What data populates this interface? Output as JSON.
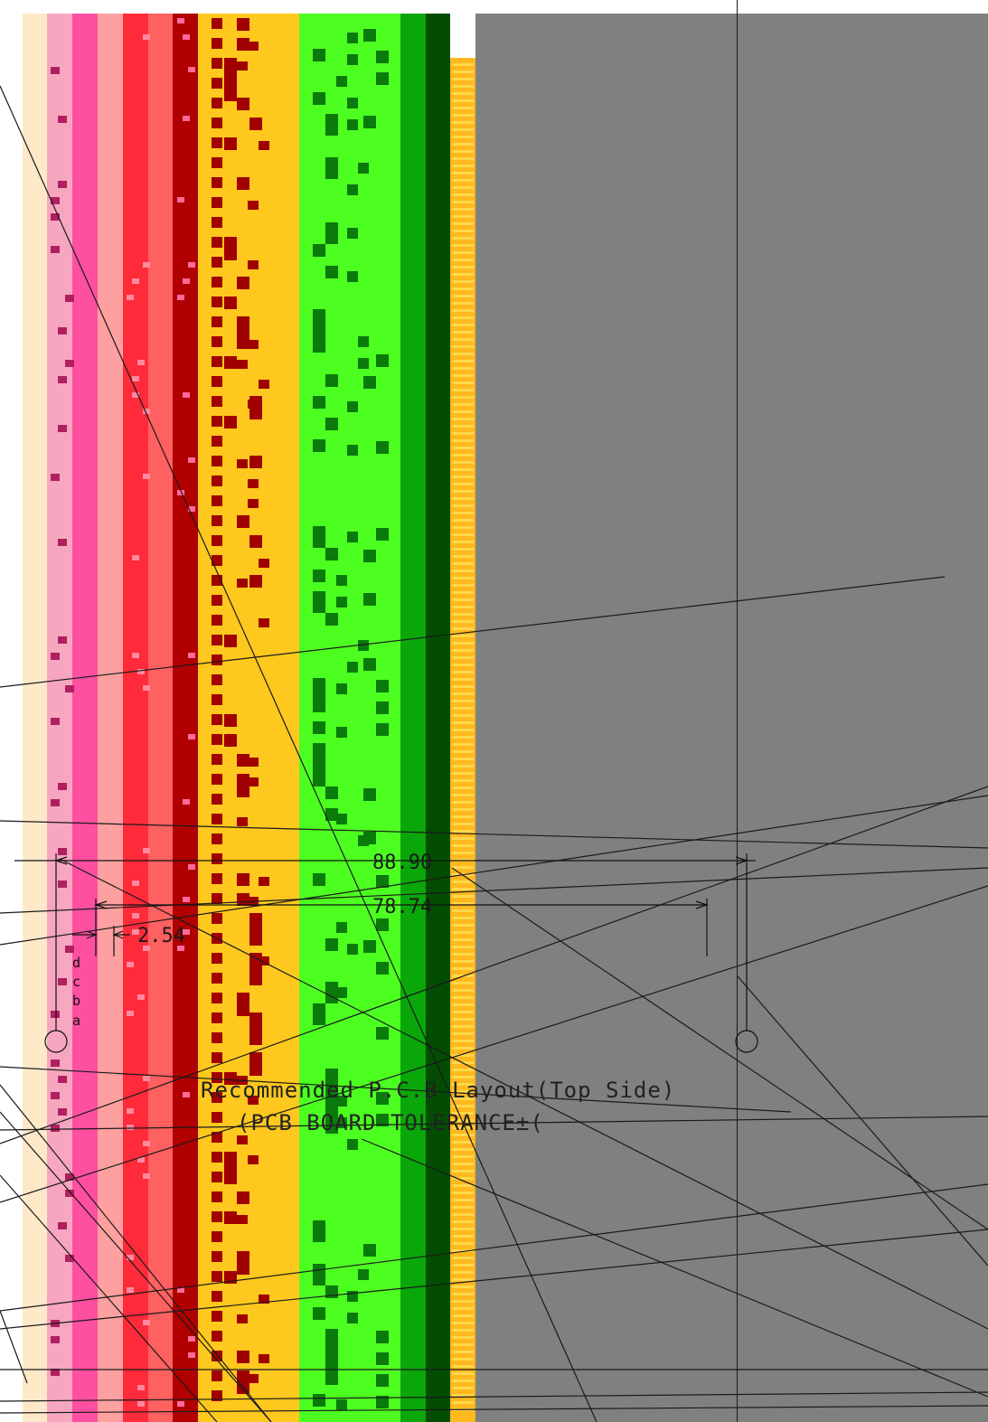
{
  "drawing": {
    "title": "Recommended P.C.B Layout(Top Side)",
    "subtitle": "(PCB BOARD TOLERANCE±(",
    "dimensions": {
      "outer": "88.90",
      "inner": "78.74",
      "pitch": "2.54"
    },
    "pin_rows": [
      "d",
      "c",
      "b",
      "a"
    ]
  },
  "colors": {
    "band_cream": "#fde9c8",
    "band_pink_light": "#f7a6c0",
    "band_magenta": "#ff4fa0",
    "band_salmon": "#ffa0a0",
    "band_red": "#ff2a3a",
    "band_coral": "#ff6060",
    "band_darkred": "#b00000",
    "band_gold": "#ffc81e",
    "band_lime": "#4dff21",
    "band_green": "#0aa60a",
    "band_darkgreen": "#034d03",
    "band_orange": "#ffb81e",
    "background_gray": "#808080",
    "line": "#1a1a1a"
  }
}
